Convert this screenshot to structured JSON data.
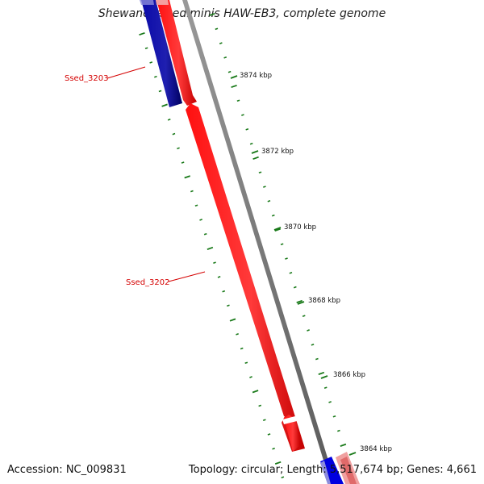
{
  "title": "Shewanella sediminis HAW-EB3, complete genome",
  "footer": {
    "accession": "Accession: NC_009831",
    "summary": "Topology: circular; Length: 5,517,674 bp; Genes: 4,661"
  },
  "colors": {
    "reverse_gene": "#00007f",
    "forward_gene": "#ff0000",
    "backbone": "#808080",
    "ticks": "#1a7a1a",
    "labels": "#d40000"
  },
  "gene_labels": [
    {
      "name": "Ssed_3203"
    },
    {
      "name": "Ssed_3202"
    }
  ],
  "ruler": {
    "unit": "kbp",
    "labels": [
      "3874 kbp",
      "3872 kbp",
      "3870 kbp",
      "3868 kbp",
      "3866 kbp",
      "3864 kbp"
    ]
  }
}
